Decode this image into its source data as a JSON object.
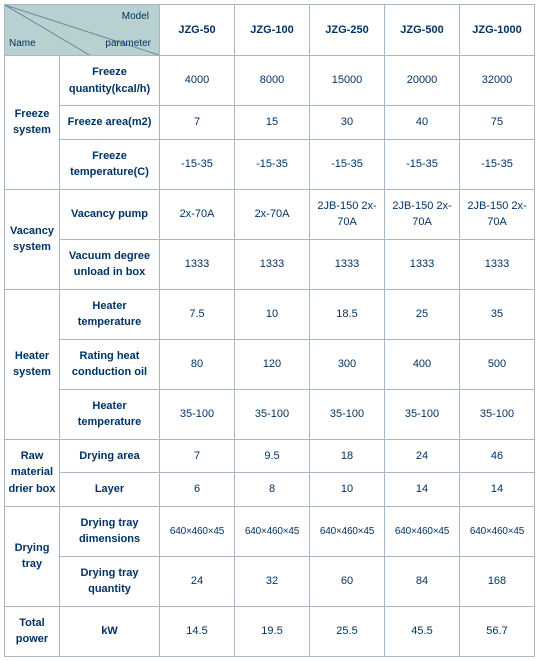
{
  "colors": {
    "text": "#003366",
    "border": "#a7b7c7",
    "header_bg": "#b8d0d0",
    "body_bg": "#ffffff"
  },
  "fonts": {
    "family": "Verdana, Arial, sans-serif",
    "size_body": 11,
    "size_header_small": 10
  },
  "header": {
    "diag_top": "Model",
    "diag_left": "Name",
    "diag_right": "parameter",
    "models": [
      "JZG-50",
      "JZG-100",
      "JZG-250",
      "JZG-500",
      "JZG-1000"
    ]
  },
  "sections": [
    {
      "category": "Freeze system",
      "rows": [
        {
          "param": "Freeze quantity(kcal/h)",
          "values": [
            "4000",
            "8000",
            "15000",
            "20000",
            "32000"
          ]
        },
        {
          "param": "Freeze area(m2)",
          "values": [
            "7",
            "15",
            "30",
            "40",
            "75"
          ]
        },
        {
          "param": "Freeze temperature(C)",
          "values": [
            "-15-35",
            "-15-35",
            "-15-35",
            "-15-35",
            "-15-35"
          ]
        }
      ]
    },
    {
      "category": "Vacancy system",
      "rows": [
        {
          "param": "Vacancy pump",
          "values": [
            "2x-70A",
            "2x-70A",
            "2JB-150 2x-70A",
            "2JB-150 2x-70A",
            "2JB-150 2x-70A"
          ]
        },
        {
          "param": "Vacuum degree unload in box",
          "values": [
            "1333",
            "1333",
            "1333",
            "1333",
            "1333"
          ]
        }
      ]
    },
    {
      "category": "Heater system",
      "rows": [
        {
          "param": "Heater temperature",
          "values": [
            "7.5",
            "10",
            "18.5",
            "25",
            "35"
          ]
        },
        {
          "param": "Rating heat conduction oil",
          "values": [
            "80",
            "120",
            "300",
            "400",
            "500"
          ]
        },
        {
          "param": "Heater temperature",
          "values": [
            "35-100",
            "35-100",
            "35-100",
            "35-100",
            "35-100"
          ]
        }
      ]
    },
    {
      "category": "Raw material drier box",
      "rows": [
        {
          "param": "Drying area",
          "values": [
            "7",
            "9.5",
            "18",
            "24",
            "46"
          ]
        },
        {
          "param": "Layer",
          "values": [
            "6",
            "8",
            "10",
            "14",
            "14"
          ]
        }
      ]
    },
    {
      "category": "Drying tray",
      "rows": [
        {
          "param": "Drying tray dimensions",
          "values": [
            "640×460×45",
            "640×460×45",
            "640×460×45",
            "640×460×45",
            "640×460×45"
          ],
          "tight": true
        },
        {
          "param": "Drying tray quantity",
          "values": [
            "24",
            "32",
            "60",
            "84",
            "168"
          ]
        }
      ]
    },
    {
      "category": "Total power",
      "rows": [
        {
          "param": "kW",
          "values": [
            "14.5",
            "19.5",
            "25.5",
            "45.5",
            "56.7"
          ]
        }
      ]
    }
  ]
}
